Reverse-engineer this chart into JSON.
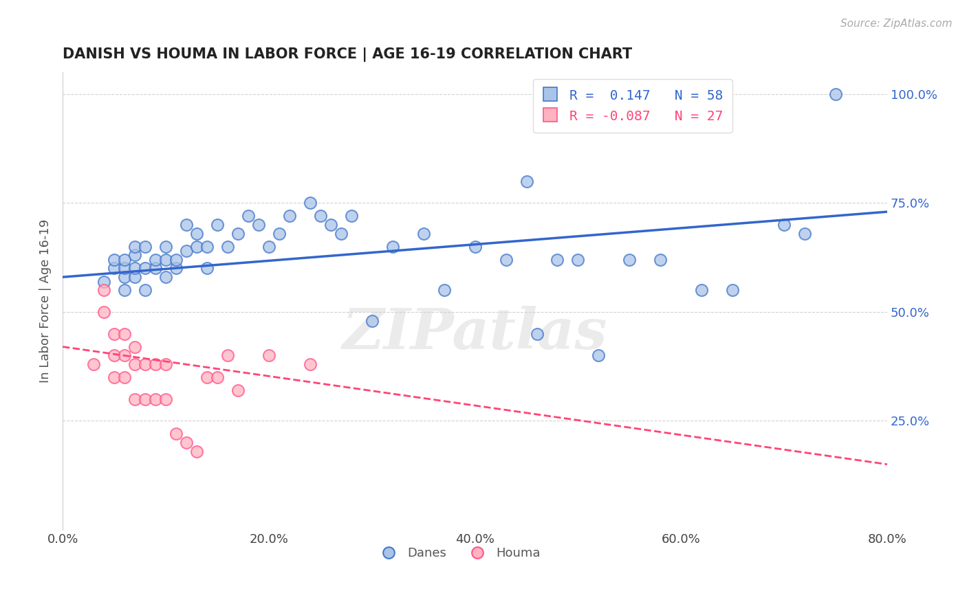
{
  "title": "DANISH VS HOUMA IN LABOR FORCE | AGE 16-19 CORRELATION CHART",
  "source": "Source: ZipAtlas.com",
  "ylabel": "In Labor Force | Age 16-19",
  "xlim": [
    0.0,
    0.8
  ],
  "ylim": [
    0.0,
    1.05
  ],
  "xticks": [
    0.0,
    0.2,
    0.4,
    0.6,
    0.8
  ],
  "xtick_labels": [
    "0.0%",
    "20.0%",
    "40.0%",
    "60.0%",
    "80.0%"
  ],
  "ytick_labels_right": [
    "25.0%",
    "50.0%",
    "75.0%",
    "100.0%"
  ],
  "ytick_vals": [
    0.25,
    0.5,
    0.75,
    1.0
  ],
  "danes_R": "0.147",
  "danes_N": "58",
  "houma_R": "-0.087",
  "houma_N": "27",
  "danes_color": "#AAC4E8",
  "houma_color": "#FFB3C1",
  "danes_edge_color": "#4477CC",
  "houma_edge_color": "#FF5588",
  "danes_line_color": "#3366CC",
  "houma_line_color": "#FF4477",
  "background_color": "#FFFFFF",
  "title_color": "#222222",
  "legend_label_danes": "Danes",
  "legend_label_houma": "Houma",
  "danes_x": [
    0.04,
    0.05,
    0.05,
    0.06,
    0.06,
    0.06,
    0.06,
    0.07,
    0.07,
    0.07,
    0.07,
    0.08,
    0.08,
    0.08,
    0.09,
    0.09,
    0.1,
    0.1,
    0.1,
    0.11,
    0.11,
    0.12,
    0.12,
    0.13,
    0.13,
    0.14,
    0.14,
    0.15,
    0.16,
    0.17,
    0.18,
    0.19,
    0.2,
    0.21,
    0.22,
    0.24,
    0.25,
    0.26,
    0.27,
    0.28,
    0.3,
    0.32,
    0.35,
    0.37,
    0.4,
    0.43,
    0.45,
    0.46,
    0.48,
    0.5,
    0.52,
    0.55,
    0.58,
    0.62,
    0.65,
    0.7,
    0.72,
    0.75
  ],
  "danes_y": [
    0.57,
    0.6,
    0.62,
    0.55,
    0.58,
    0.6,
    0.62,
    0.58,
    0.6,
    0.63,
    0.65,
    0.55,
    0.6,
    0.65,
    0.6,
    0.62,
    0.58,
    0.62,
    0.65,
    0.6,
    0.62,
    0.64,
    0.7,
    0.65,
    0.68,
    0.6,
    0.65,
    0.7,
    0.65,
    0.68,
    0.72,
    0.7,
    0.65,
    0.68,
    0.72,
    0.75,
    0.72,
    0.7,
    0.68,
    0.72,
    0.48,
    0.65,
    0.68,
    0.55,
    0.65,
    0.62,
    0.8,
    0.45,
    0.62,
    0.62,
    0.4,
    0.62,
    0.62,
    0.55,
    0.55,
    0.7,
    0.68,
    1.0
  ],
  "houma_x": [
    0.03,
    0.04,
    0.04,
    0.05,
    0.05,
    0.05,
    0.06,
    0.06,
    0.06,
    0.07,
    0.07,
    0.07,
    0.08,
    0.08,
    0.09,
    0.09,
    0.1,
    0.1,
    0.11,
    0.12,
    0.13,
    0.14,
    0.15,
    0.16,
    0.17,
    0.2,
    0.24
  ],
  "houma_y": [
    0.38,
    0.5,
    0.55,
    0.35,
    0.4,
    0.45,
    0.35,
    0.4,
    0.45,
    0.3,
    0.38,
    0.42,
    0.3,
    0.38,
    0.3,
    0.38,
    0.3,
    0.38,
    0.22,
    0.2,
    0.18,
    0.35,
    0.35,
    0.4,
    0.32,
    0.4,
    0.38
  ],
  "watermark": "ZIPatlas",
  "danes_trend_x": [
    0.0,
    0.8
  ],
  "danes_trend_y": [
    0.58,
    0.73
  ],
  "houma_trend_x": [
    0.0,
    0.8
  ],
  "houma_trend_y": [
    0.42,
    0.15
  ]
}
